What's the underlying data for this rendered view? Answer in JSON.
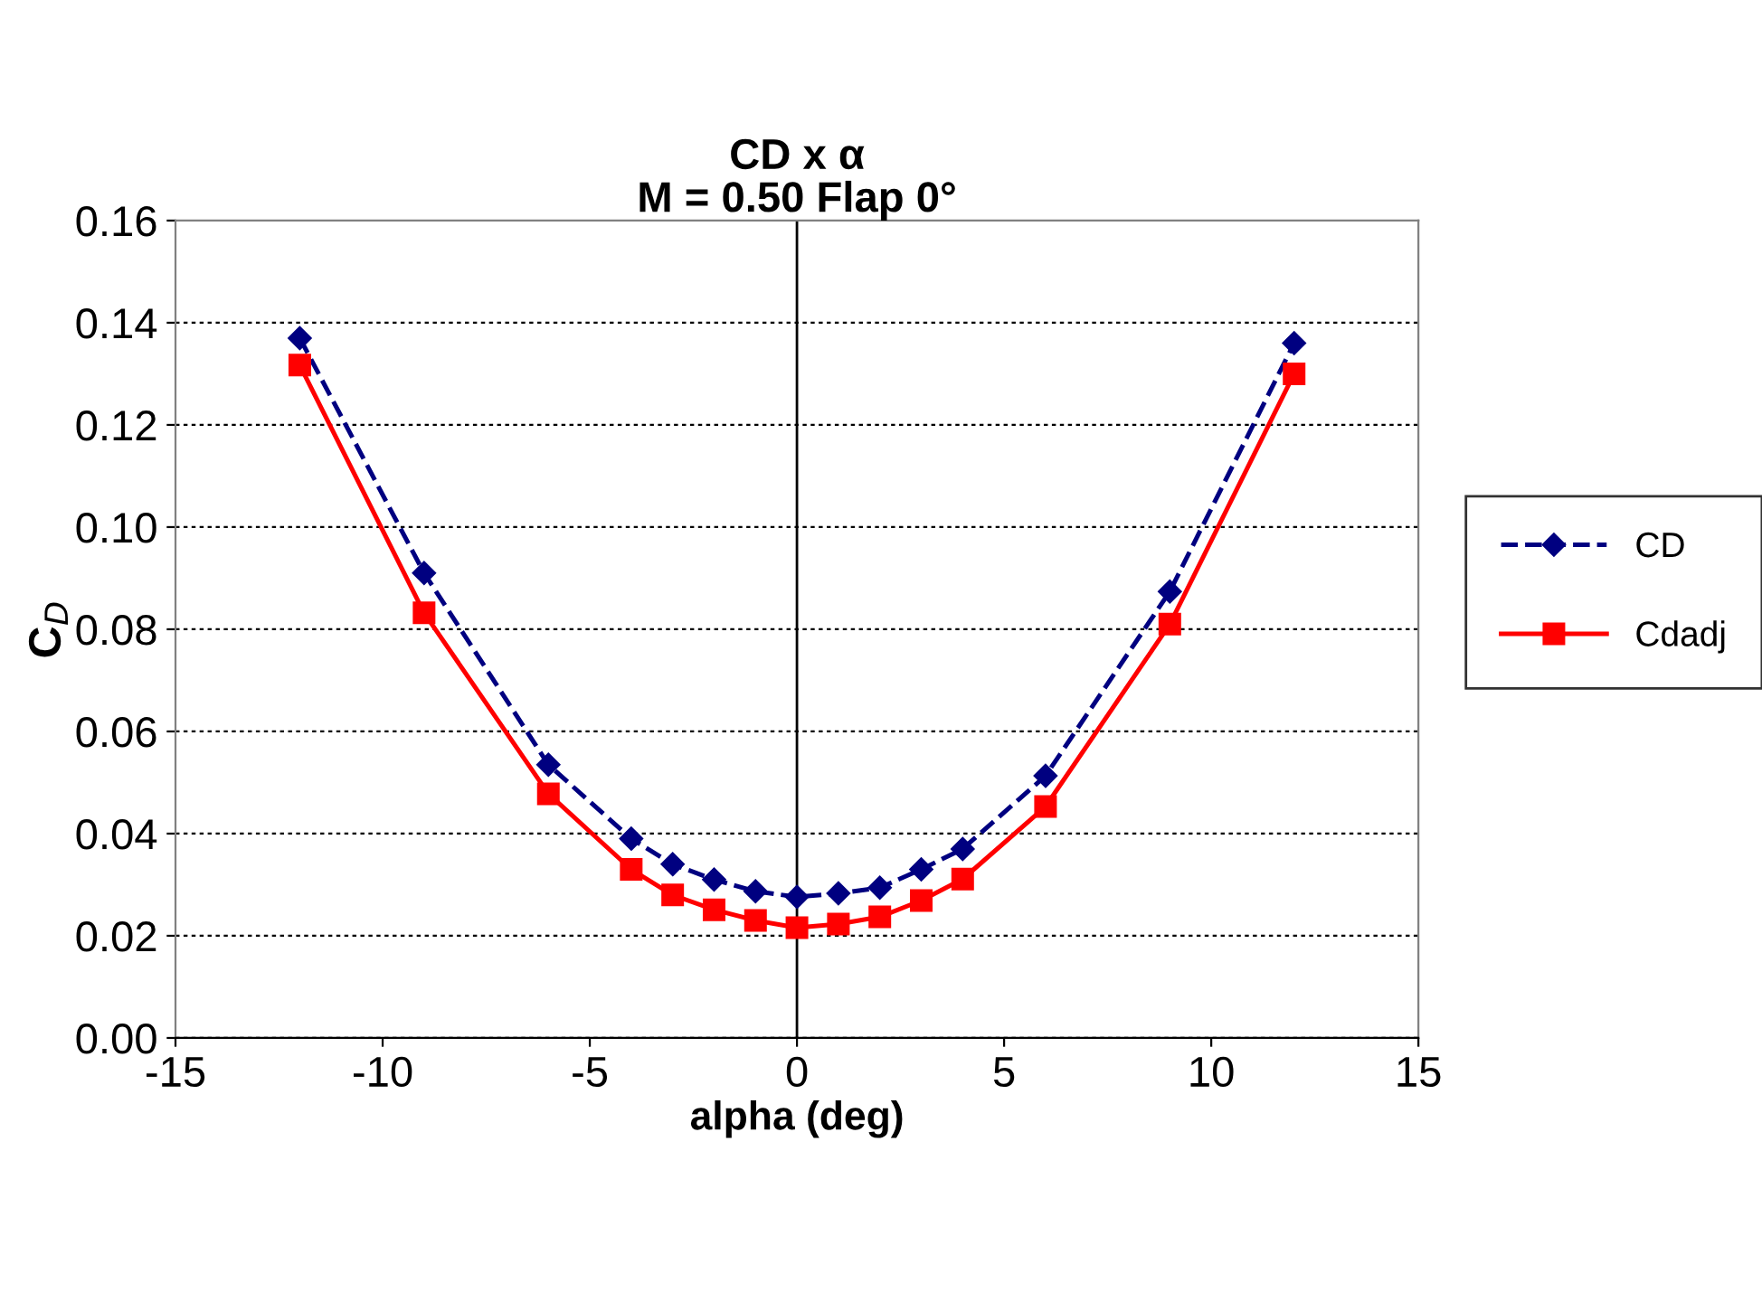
{
  "chart_data": {
    "type": "line",
    "title": "CD x α\nM = 0.50 Flap 0°",
    "xlabel": "alpha (deg)",
    "ylabel": "C$_{D}$",
    "xlim": [
      -15,
      15
    ],
    "xticks": [
      -15,
      -10,
      -5,
      0,
      5,
      10,
      15
    ],
    "ylim": [
      0,
      0.16
    ],
    "yticks": [
      {
        "value": 0,
        "label": "0.00"
      },
      {
        "value": 0.02,
        "label": "0.02"
      },
      {
        "value": 0.04,
        "label": "0.04"
      },
      {
        "value": 0.06,
        "label": "0.06"
      },
      {
        "value": 0.08,
        "label": "0.08"
      },
      {
        "value": 0.1,
        "label": "0.10"
      },
      {
        "value": 0.12,
        "label": "0.12"
      },
      {
        "value": 0.14,
        "label": "0.14"
      },
      {
        "value": 0.16,
        "label": "0.16"
      }
    ],
    "grid": "y",
    "legend": "right",
    "ref_lines": [
      {
        "axis": "x",
        "value": 0,
        "color": "#000000"
      }
    ],
    "x": [
      -12,
      -9,
      -6,
      -4,
      -3,
      -2,
      -1,
      0,
      1,
      2,
      3,
      4,
      6,
      9,
      12
    ],
    "series": [
      {
        "name": "CD",
        "color": "#000080",
        "marker": "diamond",
        "line_style": "dashed",
        "values": [
          0.137,
          0.091,
          0.0535,
          0.039,
          0.034,
          0.031,
          0.0287,
          0.0276,
          0.0283,
          0.0294,
          0.033,
          0.037,
          0.0513,
          0.0874,
          0.136
        ]
      },
      {
        "name": "Cdadj",
        "color": "#ff0000",
        "marker": "square",
        "line_style": "solid",
        "values": [
          0.1317,
          0.0832,
          0.0478,
          0.033,
          0.028,
          0.0251,
          0.023,
          0.0216,
          0.0223,
          0.0237,
          0.0269,
          0.0311,
          0.0453,
          0.081,
          0.13
        ]
      }
    ]
  }
}
